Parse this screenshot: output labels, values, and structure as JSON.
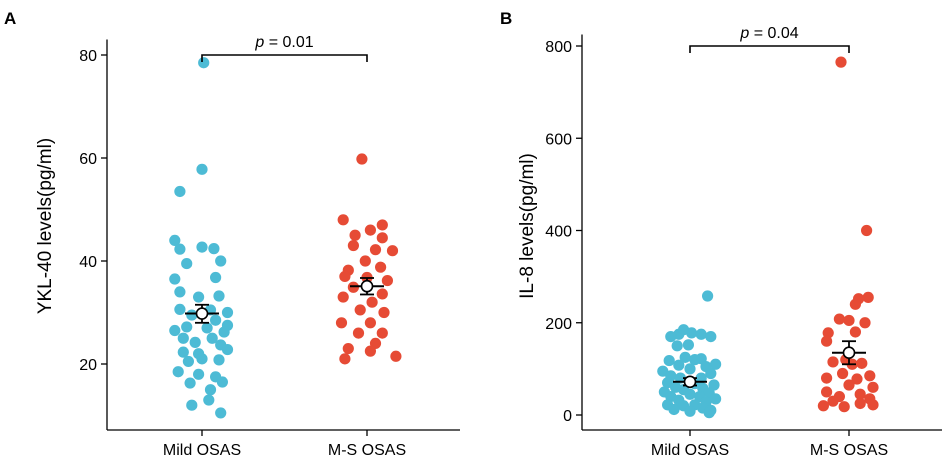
{
  "chart_data": [
    {
      "panel_label": "A",
      "type": "scatter",
      "subtype": "jittered dot plot with mean and SEM",
      "categories": [
        "Mild OSAS",
        "M-S OSAS"
      ],
      "ylabel": "YKL-40 levels(pg/ml)",
      "xlabel": "",
      "ylim": [
        8,
        83
      ],
      "yticks": [
        20,
        40,
        60,
        80
      ],
      "grid": false,
      "colors": [
        "#4dbbd5",
        "#e64b35"
      ],
      "significance": {
        "label_italic": "p",
        "label_rest": " = 0.01",
        "level": 80
      },
      "groups": [
        {
          "name": "Mild OSAS",
          "mean": 29.8,
          "sem_low": 28.0,
          "sem_high": 31.5,
          "points": [
            {
              "jitter": 0.01,
              "value": 78.5
            },
            {
              "jitter": 0.0,
              "value": 57.8
            },
            {
              "jitter": -0.13,
              "value": 53.5
            },
            {
              "jitter": -0.16,
              "value": 44.0
            },
            {
              "jitter": -0.13,
              "value": 42.3
            },
            {
              "jitter": 0.0,
              "value": 42.7
            },
            {
              "jitter": 0.07,
              "value": 42.4
            },
            {
              "jitter": 0.11,
              "value": 40.0
            },
            {
              "jitter": -0.09,
              "value": 39.5
            },
            {
              "jitter": -0.16,
              "value": 36.5
            },
            {
              "jitter": 0.08,
              "value": 36.8
            },
            {
              "jitter": -0.13,
              "value": 34.0
            },
            {
              "jitter": 0.1,
              "value": 33.2
            },
            {
              "jitter": -0.02,
              "value": 33.0
            },
            {
              "jitter": 0.05,
              "value": 30.5
            },
            {
              "jitter": -0.13,
              "value": 30.6
            },
            {
              "jitter": 0.15,
              "value": 30.0
            },
            {
              "jitter": -0.06,
              "value": 29.5
            },
            {
              "jitter": 0.08,
              "value": 28.5
            },
            {
              "jitter": 0.15,
              "value": 27.5
            },
            {
              "jitter": -0.09,
              "value": 27.2
            },
            {
              "jitter": 0.03,
              "value": 27.0
            },
            {
              "jitter": -0.16,
              "value": 26.5
            },
            {
              "jitter": 0.13,
              "value": 26.2
            },
            {
              "jitter": -0.11,
              "value": 25.0
            },
            {
              "jitter": 0.06,
              "value": 25.0
            },
            {
              "jitter": -0.04,
              "value": 24.2
            },
            {
              "jitter": 0.11,
              "value": 23.7
            },
            {
              "jitter": 0.15,
              "value": 22.8
            },
            {
              "jitter": -0.11,
              "value": 22.3
            },
            {
              "jitter": -0.02,
              "value": 22.0
            },
            {
              "jitter": 0.1,
              "value": 20.8
            },
            {
              "jitter": -0.08,
              "value": 20.5
            },
            {
              "jitter": 0.0,
              "value": 21.0
            },
            {
              "jitter": -0.14,
              "value": 18.5
            },
            {
              "jitter": -0.02,
              "value": 18.0
            },
            {
              "jitter": 0.08,
              "value": 17.5
            },
            {
              "jitter": 0.12,
              "value": 16.5
            },
            {
              "jitter": -0.07,
              "value": 16.3
            },
            {
              "jitter": 0.05,
              "value": 15.0
            },
            {
              "jitter": 0.04,
              "value": 13.0
            },
            {
              "jitter": -0.06,
              "value": 12.0
            },
            {
              "jitter": 0.11,
              "value": 10.5
            }
          ]
        },
        {
          "name": "M-S OSAS",
          "mean": 35.1,
          "sem_low": 33.5,
          "sem_high": 36.7,
          "points": [
            {
              "jitter": -0.03,
              "value": 59.8
            },
            {
              "jitter": -0.14,
              "value": 48.0
            },
            {
              "jitter": 0.09,
              "value": 47.0
            },
            {
              "jitter": 0.02,
              "value": 46.0
            },
            {
              "jitter": -0.07,
              "value": 45.0
            },
            {
              "jitter": 0.09,
              "value": 44.5
            },
            {
              "jitter": -0.08,
              "value": 43.0
            },
            {
              "jitter": 0.05,
              "value": 42.2
            },
            {
              "jitter": 0.15,
              "value": 42.0
            },
            {
              "jitter": -0.01,
              "value": 40.0
            },
            {
              "jitter": -0.11,
              "value": 38.2
            },
            {
              "jitter": 0.08,
              "value": 38.8
            },
            {
              "jitter": -0.13,
              "value": 37.0
            },
            {
              "jitter": 0.0,
              "value": 36.8
            },
            {
              "jitter": 0.12,
              "value": 36.2
            },
            {
              "jitter": -0.08,
              "value": 34.9
            },
            {
              "jitter": 0.09,
              "value": 33.6
            },
            {
              "jitter": -0.14,
              "value": 33.0
            },
            {
              "jitter": 0.03,
              "value": 32.0
            },
            {
              "jitter": -0.04,
              "value": 30.5
            },
            {
              "jitter": 0.1,
              "value": 30.0
            },
            {
              "jitter": -0.15,
              "value": 28.0
            },
            {
              "jitter": 0.02,
              "value": 28.0
            },
            {
              "jitter": -0.05,
              "value": 26.0
            },
            {
              "jitter": 0.09,
              "value": 26.0
            },
            {
              "jitter": 0.05,
              "value": 24.0
            },
            {
              "jitter": -0.11,
              "value": 23.0
            },
            {
              "jitter": 0.02,
              "value": 22.5
            },
            {
              "jitter": 0.17,
              "value": 21.5
            },
            {
              "jitter": -0.13,
              "value": 21.0
            }
          ]
        }
      ]
    },
    {
      "panel_label": "B",
      "type": "scatter",
      "subtype": "jittered dot plot with mean and SEM",
      "categories": [
        "Mild OSAS",
        "M-S OSAS"
      ],
      "ylabel": "IL-8 levels(pg/ml)",
      "xlabel": "",
      "ylim": [
        -25,
        825
      ],
      "yticks": [
        0,
        200,
        400,
        600,
        800
      ],
      "grid": false,
      "colors": [
        "#4dbbd5",
        "#e64b35"
      ],
      "significance": {
        "label_italic": "p",
        "label_rest": " = 0.04",
        "level": 800
      },
      "groups": [
        {
          "name": "Mild OSAS",
          "mean": 72,
          "sem_low": 64,
          "sem_high": 80,
          "points": [
            {
              "jitter": 0.11,
              "value": 258
            },
            {
              "jitter": -0.07,
              "value": 175
            },
            {
              "jitter": -0.04,
              "value": 185
            },
            {
              "jitter": 0.01,
              "value": 178
            },
            {
              "jitter": -0.12,
              "value": 170
            },
            {
              "jitter": 0.07,
              "value": 175
            },
            {
              "jitter": 0.13,
              "value": 170
            },
            {
              "jitter": -0.08,
              "value": 150
            },
            {
              "jitter": -0.01,
              "value": 152
            },
            {
              "jitter": -0.03,
              "value": 125
            },
            {
              "jitter": 0.07,
              "value": 122
            },
            {
              "jitter": -0.13,
              "value": 118
            },
            {
              "jitter": 0.03,
              "value": 120
            },
            {
              "jitter": 0.16,
              "value": 110
            },
            {
              "jitter": -0.07,
              "value": 108
            },
            {
              "jitter": 0.1,
              "value": 105
            },
            {
              "jitter": -0.17,
              "value": 95
            },
            {
              "jitter": 0.0,
              "value": 100
            },
            {
              "jitter": 0.13,
              "value": 90
            },
            {
              "jitter": -0.12,
              "value": 85
            },
            {
              "jitter": 0.07,
              "value": 80
            },
            {
              "jitter": -0.06,
              "value": 80
            },
            {
              "jitter": -0.14,
              "value": 70
            },
            {
              "jitter": 0.03,
              "value": 68
            },
            {
              "jitter": 0.15,
              "value": 65
            },
            {
              "jitter": -0.09,
              "value": 60
            },
            {
              "jitter": 0.08,
              "value": 58
            },
            {
              "jitter": -0.04,
              "value": 55
            },
            {
              "jitter": -0.16,
              "value": 50
            },
            {
              "jitter": 0.12,
              "value": 48
            },
            {
              "jitter": 0.0,
              "value": 45
            },
            {
              "jitter": -0.12,
              "value": 40
            },
            {
              "jitter": 0.06,
              "value": 40
            },
            {
              "jitter": 0.16,
              "value": 35
            },
            {
              "jitter": -0.07,
              "value": 32
            },
            {
              "jitter": 0.1,
              "value": 28
            },
            {
              "jitter": -0.14,
              "value": 22
            },
            {
              "jitter": 0.03,
              "value": 22
            },
            {
              "jitter": -0.04,
              "value": 20
            },
            {
              "jitter": 0.08,
              "value": 15
            },
            {
              "jitter": -0.1,
              "value": 12
            },
            {
              "jitter": 0.13,
              "value": 10
            },
            {
              "jitter": 0.0,
              "value": 8
            },
            {
              "jitter": 0.12,
              "value": 5
            }
          ]
        },
        {
          "name": "M-S OSAS",
          "mean": 135,
          "sem_low": 110,
          "sem_high": 160,
          "points": [
            {
              "jitter": -0.05,
              "value": 765
            },
            {
              "jitter": 0.11,
              "value": 400
            },
            {
              "jitter": 0.12,
              "value": 255
            },
            {
              "jitter": 0.06,
              "value": 252
            },
            {
              "jitter": 0.04,
              "value": 240
            },
            {
              "jitter": -0.06,
              "value": 208
            },
            {
              "jitter": 0.0,
              "value": 205
            },
            {
              "jitter": 0.1,
              "value": 200
            },
            {
              "jitter": -0.13,
              "value": 178
            },
            {
              "jitter": 0.04,
              "value": 180
            },
            {
              "jitter": -0.14,
              "value": 160
            },
            {
              "jitter": -0.02,
              "value": 120
            },
            {
              "jitter": -0.1,
              "value": 115
            },
            {
              "jitter": 0.02,
              "value": 110
            },
            {
              "jitter": 0.08,
              "value": 112
            },
            {
              "jitter": -0.04,
              "value": 90
            },
            {
              "jitter": 0.13,
              "value": 85
            },
            {
              "jitter": -0.14,
              "value": 80
            },
            {
              "jitter": 0.05,
              "value": 78
            },
            {
              "jitter": 0.0,
              "value": 65
            },
            {
              "jitter": 0.15,
              "value": 60
            },
            {
              "jitter": -0.14,
              "value": 50
            },
            {
              "jitter": 0.07,
              "value": 45
            },
            {
              "jitter": -0.06,
              "value": 40
            },
            {
              "jitter": 0.13,
              "value": 35
            },
            {
              "jitter": -0.1,
              "value": 30
            },
            {
              "jitter": 0.07,
              "value": 25
            },
            {
              "jitter": 0.15,
              "value": 22
            },
            {
              "jitter": -0.16,
              "value": 20
            },
            {
              "jitter": -0.03,
              "value": 18
            }
          ]
        }
      ]
    }
  ]
}
